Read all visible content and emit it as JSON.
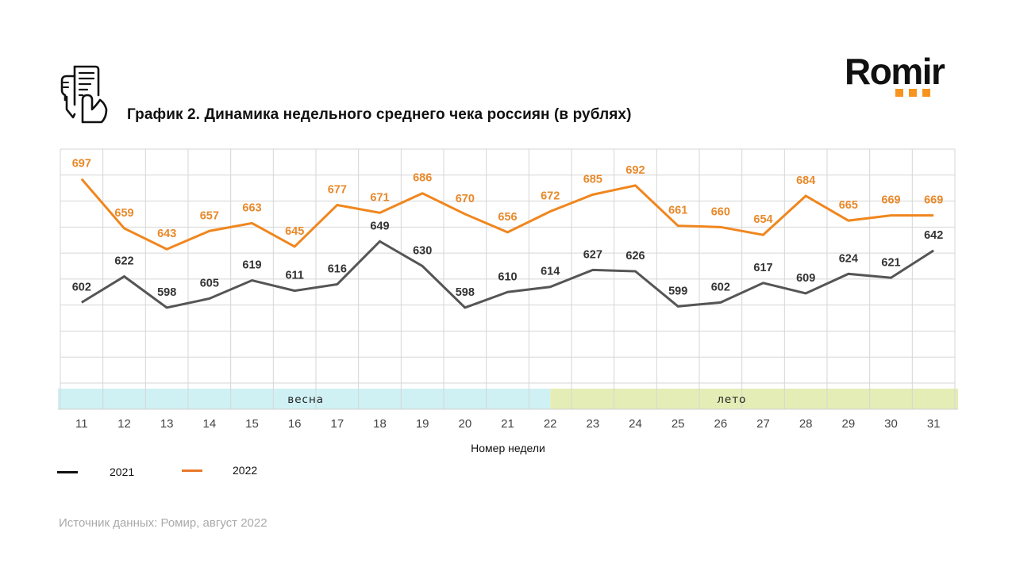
{
  "header": {
    "title": "График 2. Динамика недельного среднего чека россиян (в рублях)",
    "icon": "receipt-in-hand-icon",
    "logo": {
      "text": "Romir",
      "accent_color": "#f7941d",
      "dots": 3
    }
  },
  "chart_data": {
    "type": "line",
    "title": "График 2. Динамика недельного среднего чека россиян (в рублях)",
    "xlabel": "Номер недели",
    "ylabel": "",
    "categories": [
      "11",
      "12",
      "13",
      "14",
      "15",
      "16",
      "17",
      "18",
      "19",
      "20",
      "21",
      "22",
      "23",
      "24",
      "25",
      "26",
      "27",
      "28",
      "29",
      "30",
      "31"
    ],
    "series": [
      {
        "name": "2021",
        "color": "#555555",
        "label_color": "#333333",
        "values": [
          602,
          622,
          598,
          605,
          619,
          611,
          616,
          649,
          630,
          598,
          610,
          614,
          627,
          626,
          599,
          602,
          617,
          609,
          624,
          621,
          642
        ]
      },
      {
        "name": "2022",
        "color": "#f0861e",
        "label_color": "#e8892a",
        "values": [
          697,
          659,
          643,
          657,
          663,
          645,
          677,
          671,
          686,
          670,
          656,
          672,
          685,
          692,
          661,
          660,
          654,
          684,
          665,
          669,
          669
        ]
      }
    ],
    "ylim": [
      540,
      720
    ],
    "y_grid_step": 20,
    "grid": true,
    "y_tick_labels_shown": false,
    "data_labels": true,
    "season_bands": [
      {
        "label": "весна",
        "from_week": "11",
        "to_week": "22",
        "to_fraction_of_week": 0.5,
        "color": "#cff1f4"
      },
      {
        "label": "лето",
        "from_week": "22",
        "from_fraction_of_week": 0.5,
        "to_week": "31",
        "color": "#e4edb6"
      }
    ],
    "legend": {
      "placement": "bottom-left",
      "entries": [
        {
          "label": "2021",
          "color": "#111111"
        },
        {
          "label": "2022",
          "color": "#e8782a"
        }
      ]
    }
  },
  "footer": {
    "source": "Источник данных: Ромир, август 2022"
  }
}
